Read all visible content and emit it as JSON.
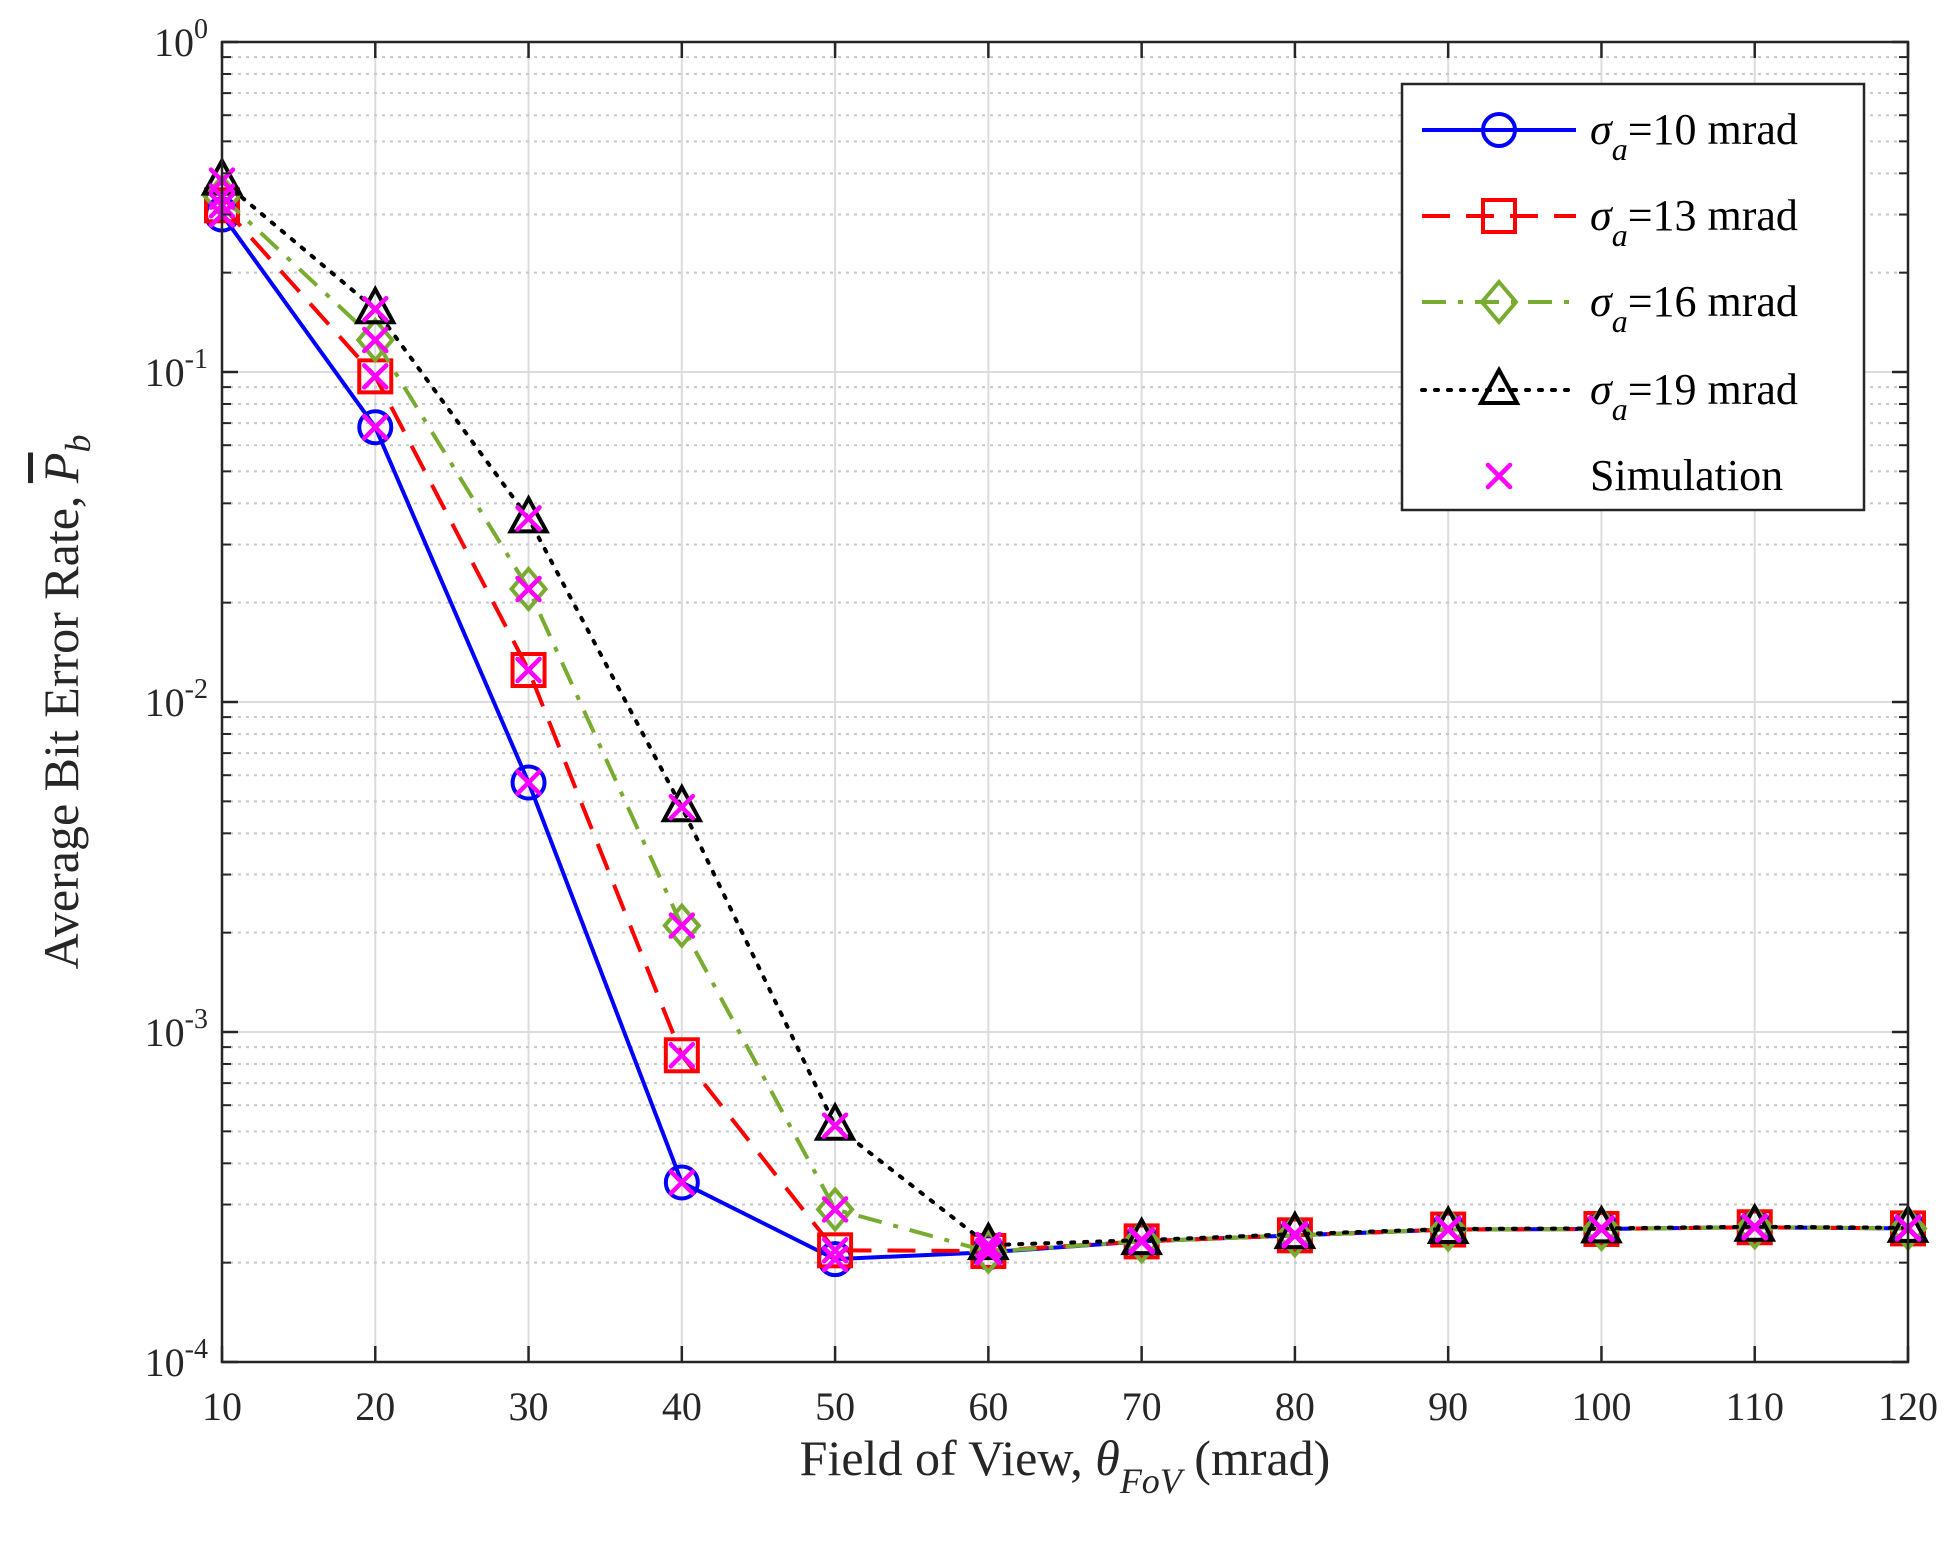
{
  "chart_data": {
    "type": "line",
    "y_scale": "log",
    "x": [
      10,
      20,
      30,
      40,
      50,
      60,
      70,
      80,
      90,
      100,
      110,
      120
    ],
    "xlim": [
      10,
      120
    ],
    "ylim": [
      0.0001,
      1
    ],
    "grid": true,
    "legend_position": "top-right",
    "xlabel": {
      "prefix": "Field of View, ",
      "symbol": "θ",
      "subscript": "FoV",
      "suffix": " (mrad)"
    },
    "ylabel": {
      "text": "Average Bit Error Rate, ",
      "symbol": "P",
      "subscript": "b"
    },
    "x_tick_labels": [
      "10",
      "20",
      "30",
      "40",
      "50",
      "60",
      "70",
      "80",
      "90",
      "100",
      "110",
      "120"
    ],
    "y_ticks": [
      {
        "value": 1,
        "base": "10",
        "exp": "0"
      },
      {
        "value": 0.1,
        "base": "10",
        "exp": "-1"
      },
      {
        "value": 0.01,
        "base": "10",
        "exp": "-2"
      },
      {
        "value": 0.001,
        "base": "10",
        "exp": "-3"
      },
      {
        "value": 0.0001,
        "base": "10",
        "exp": "-4"
      }
    ],
    "series": [
      {
        "name": "σ_a=10 mrad",
        "symbol": "σ",
        "subscript": "a",
        "value_text": "=10 mrad",
        "color": "#0000ff",
        "dash": "solid",
        "marker": "circle",
        "values": [
          0.3,
          0.068,
          0.0057,
          0.00035,
          0.000205,
          0.000215,
          0.000232,
          0.000242,
          0.000252,
          0.000253,
          0.000256,
          0.000254
        ]
      },
      {
        "name": "σ_a=13 mrad",
        "symbol": "σ",
        "subscript": "a",
        "value_text": "=13 mrad",
        "color": "#ff0000",
        "dash": "dashed",
        "marker": "square",
        "values": [
          0.32,
          0.097,
          0.0125,
          0.00085,
          0.000218,
          0.000217,
          0.000232,
          0.000242,
          0.000252,
          0.000253,
          0.000256,
          0.000254
        ]
      },
      {
        "name": "σ_a=16 mrad",
        "symbol": "σ",
        "subscript": "a",
        "value_text": "=16 mrad",
        "color": "#77ac30",
        "dash": "dashdot",
        "marker": "diamond",
        "values": [
          0.34,
          0.125,
          0.022,
          0.0021,
          0.00029,
          0.000216,
          0.000232,
          0.000242,
          0.000252,
          0.000253,
          0.000256,
          0.000254
        ]
      },
      {
        "name": "σ_a=19 mrad",
        "symbol": "σ",
        "subscript": "a",
        "value_text": "=19 mrad",
        "color": "#000000",
        "dash": "dotted",
        "marker": "triangle",
        "values": [
          0.38,
          0.155,
          0.036,
          0.0048,
          0.00052,
          0.000226,
          0.000234,
          0.000244,
          0.000253,
          0.000254,
          0.000257,
          0.000255
        ]
      }
    ],
    "simulation": {
      "name": "Simulation",
      "color": "#ff00ff",
      "marker": "x",
      "values": [
        [
          0.3,
          0.068,
          0.0057,
          0.00035,
          0.000205,
          0.000215,
          0.000232,
          0.000242,
          0.000252,
          0.000253,
          0.000256,
          0.000254
        ],
        [
          0.32,
          0.097,
          0.0125,
          0.00085,
          0.000218,
          0.000217,
          0.000232,
          0.000242,
          0.000252,
          0.000253,
          0.000256,
          0.000254
        ],
        [
          0.34,
          0.125,
          0.022,
          0.0021,
          0.00029,
          0.000216,
          0.000232,
          0.000242,
          0.000252,
          0.000253,
          0.000256,
          0.000254
        ],
        [
          0.38,
          0.155,
          0.036,
          0.0048,
          0.00052,
          0.000226,
          0.000234,
          0.000244,
          0.000253,
          0.000254,
          0.000257,
          0.000255
        ]
      ]
    }
  }
}
